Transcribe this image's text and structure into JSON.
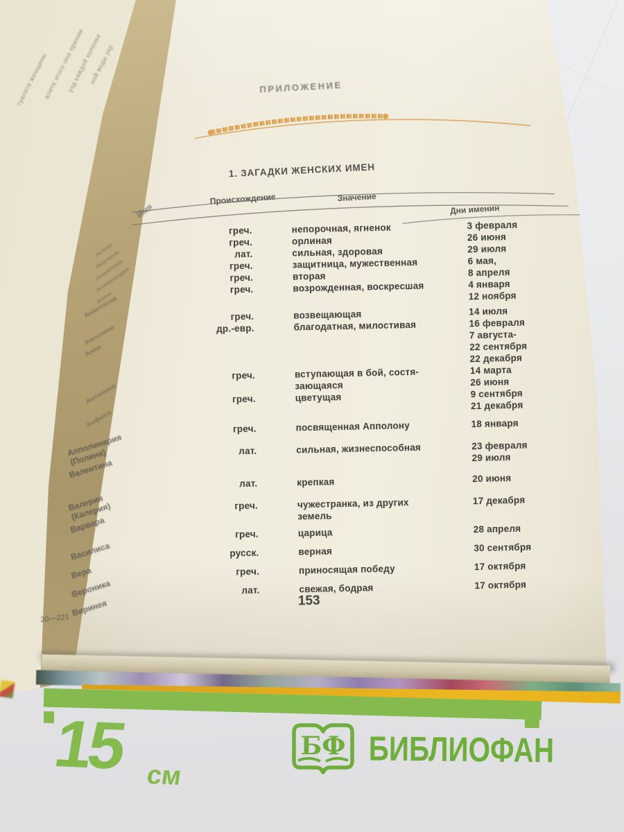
{
  "page": {
    "header": "ПРИЛОЖЕНИЕ",
    "section_title": "1. ЗАГАДКИ ЖЕНСКИХ ИМЕН",
    "page_number": "153",
    "signature_mark": "20—221"
  },
  "table": {
    "headers": {
      "name": "Имя",
      "origin": "Происхождение",
      "meaning": "Значение",
      "days": "Дни именин"
    },
    "rows": [
      {
        "name": "Агния",
        "origin": "греч.",
        "meaning": [
          "непорочная, ягненок"
        ],
        "days": [
          "3 февраля"
        ]
      },
      {
        "name": "Акулина",
        "origin": "греч.",
        "meaning": [
          "орлиная"
        ],
        "days": [
          "26 июня"
        ]
      },
      {
        "name": "Алевтина",
        "origin": "лат.",
        "meaning": [
          "сильная, здоровая"
        ],
        "days": [
          "29 июля"
        ]
      },
      {
        "name": "Александра",
        "origin": "греч.",
        "meaning": [
          "защитница, мужественная"
        ],
        "days": [
          "6 мая,"
        ]
      },
      {
        "name": "Алла",
        "origin": "греч.",
        "meaning": [
          "вторая"
        ],
        "days": [
          "8 апреля"
        ]
      },
      {
        "name": "Анастасия",
        "origin": "греч.",
        "meaning": [
          "возрожденная, воскресшая"
        ],
        "days": [
          "4 января",
          "12 ноября"
        ]
      },
      {
        "name": "Ангелина",
        "origin": "греч.",
        "meaning": [
          "возвещающая"
        ],
        "days": [
          "14 июля"
        ]
      },
      {
        "name": "Анна",
        "origin": "др.-евр.",
        "meaning": [
          "благодатная, милостивая"
        ],
        "days": [
          "16 февраля",
          "7 августа-",
          "22 сентября",
          "22 декабря"
        ]
      },
      {
        "name": "Антонина",
        "origin": "греч.",
        "meaning": [
          "вступающая в бой, состя-",
          "зающаяся"
        ],
        "days": [
          "14 марта",
          "26 июня"
        ]
      },
      {
        "name": "Анфиса",
        "origin": "греч.",
        "meaning": [
          "цветущая"
        ],
        "days": [
          "9 сентября",
          "21 декабря"
        ]
      },
      {
        "name": "Апполинария (Полина)",
        "origin": "греч.",
        "meaning": [
          "посвященная Апполону"
        ],
        "days": [
          "18 января"
        ]
      },
      {
        "name": "Валентина",
        "origin": "лат.",
        "meaning": [
          "сильная, жизнеспособная"
        ],
        "days": [
          "23 февраля",
          "29 июля"
        ]
      },
      {
        "name": "Валерия (Калерия)",
        "origin": "лат.",
        "meaning": [
          "крепкая"
        ],
        "days": [
          "20 июня"
        ]
      },
      {
        "name": "Варвара",
        "origin": "греч.",
        "meaning": [
          "чужестранка, из других",
          "земель"
        ],
        "days": [
          "17 декабря"
        ]
      },
      {
        "name": "Василиса",
        "origin": "греч.",
        "meaning": [
          "царица"
        ],
        "days": [
          "28 апреля"
        ]
      },
      {
        "name": "Вера",
        "origin": "русск.",
        "meaning": [
          "верная"
        ],
        "days": [
          "30 сентября"
        ]
      },
      {
        "name": "Вероника",
        "origin": "греч.",
        "meaning": [
          "приносящая победу"
        ],
        "days": [
          "17 октября"
        ]
      },
      {
        "name": "Виринея",
        "origin": "лат.",
        "meaning": [
          "свежая, бодрая"
        ],
        "days": [
          "17 октября"
        ]
      }
    ]
  },
  "left_page": {
    "fragments": [
      "ной воды укр",
      "узд каждой колонки",
      "алете этого она приним",
      "туалете женщины"
    ]
  },
  "footer": {
    "ruler_label_value": "15",
    "ruler_label_unit": "см",
    "logo_monogram": "БФ",
    "logo_text": "БИБЛИОФАН"
  },
  "colors": {
    "ornament_orange": "#dfa254",
    "ruler_green": "#85ba4e",
    "logo_green": "#6fae3d",
    "page_cream": "#f0ebdd"
  }
}
